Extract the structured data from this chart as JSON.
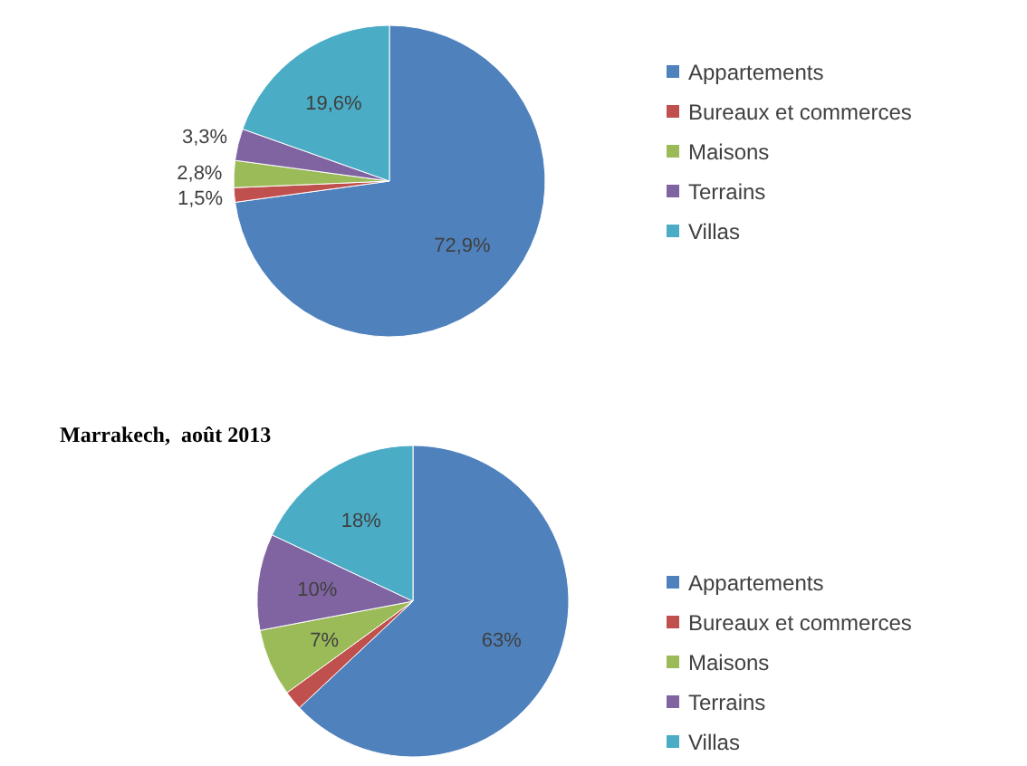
{
  "chart_data": [
    {
      "type": "pie",
      "categories": [
        "Appartements",
        "Bureaux et commerces",
        "Maisons",
        "Terrains",
        "Villas"
      ],
      "values": [
        72.9,
        1.5,
        2.8,
        3.3,
        19.6
      ],
      "value_labels": [
        "72,9%",
        "1,5%",
        "2,8%",
        "3,3%",
        "19,6%"
      ],
      "colors": [
        "#4f81bd",
        "#c0504d",
        "#9bbb59",
        "#8064a2",
        "#4bacc6"
      ],
      "legend": "right"
    },
    {
      "type": "pie",
      "title": "Marrakech,  août 2013",
      "categories": [
        "Appartements",
        "Bureaux et commerces",
        "Maisons",
        "Terrains",
        "Villas"
      ],
      "values": [
        63,
        2,
        7,
        10,
        18
      ],
      "value_labels": [
        "63%",
        null,
        "7%",
        "10%",
        "18%"
      ],
      "colors": [
        "#4f81bd",
        "#c0504d",
        "#9bbb59",
        "#8064a2",
        "#4bacc6"
      ],
      "legend": "right"
    }
  ]
}
